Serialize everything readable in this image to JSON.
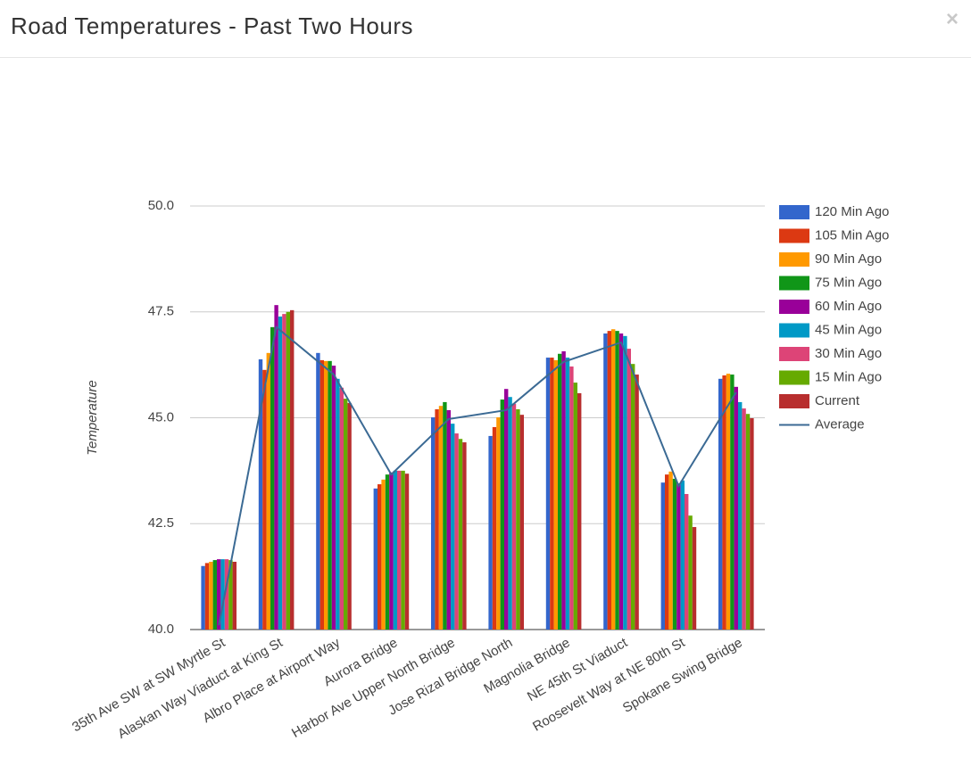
{
  "dialog": {
    "title": "Road Temperatures - Past Two Hours",
    "close": "×"
  },
  "chart_data": {
    "type": "bar",
    "y_label": "Temperature",
    "categories": [
      "35th Ave SW at SW Myrtle St",
      "Alaskan Way Viaduct at King St",
      "Albro Place at Airport Way",
      "Aurora Bridge",
      "Harbor Ave Upper North Bridge",
      "Jose Rizal Bridge North",
      "Magnolia Bridge",
      "NE 45th St Viaduct",
      "Roosevelt Way at NE 80th St",
      "Spokane Swing Bridge"
    ],
    "series": [
      {
        "name": "120 Min Ago",
        "color": "#3366cc",
        "values": [
          41.5,
          46.38,
          46.53,
          43.33,
          45.01,
          44.57,
          46.42,
          46.99,
          43.47,
          45.92
        ]
      },
      {
        "name": "105 Min Ago",
        "color": "#dc3912",
        "values": [
          41.57,
          46.13,
          46.36,
          43.43,
          45.2,
          44.78,
          46.42,
          47.05,
          43.66,
          46.0
        ]
      },
      {
        "name": "90 Min Ago",
        "color": "#ff9900",
        "values": [
          41.6,
          46.53,
          46.34,
          43.54,
          45.28,
          45.01,
          46.36,
          47.09,
          43.73,
          46.04
        ]
      },
      {
        "name": "75 Min Ago",
        "color": "#109618",
        "values": [
          41.64,
          47.14,
          46.34,
          43.66,
          45.37,
          45.43,
          46.51,
          47.05,
          43.56,
          46.02
        ]
      },
      {
        "name": "60 Min Ago",
        "color": "#990099",
        "values": [
          41.66,
          47.66,
          46.23,
          43.71,
          45.18,
          45.68,
          46.57,
          46.99,
          43.45,
          45.73
        ]
      },
      {
        "name": "45 Min Ago",
        "color": "#0099c6",
        "values": [
          41.66,
          47.39,
          45.92,
          43.75,
          44.86,
          45.49,
          46.42,
          46.93,
          43.52,
          45.37
        ]
      },
      {
        "name": "30 Min Ago",
        "color": "#dd4477",
        "values": [
          41.66,
          47.45,
          45.71,
          43.75,
          44.63,
          45.33,
          46.21,
          46.63,
          43.2,
          45.22
        ]
      },
      {
        "name": "15 Min Ago",
        "color": "#66aa00",
        "values": [
          41.64,
          47.5,
          45.45,
          43.75,
          44.5,
          45.2,
          45.83,
          46.27,
          42.69,
          45.09
        ]
      },
      {
        "name": "Current",
        "color": "#b82e2e",
        "values": [
          41.6,
          47.54,
          45.35,
          43.68,
          44.42,
          45.07,
          45.58,
          46.02,
          42.42,
          44.99
        ]
      },
      {
        "name": "Average",
        "type": "line",
        "color": "#3b6a94",
        "values": [
          40.1,
          47.14,
          46.02,
          43.66,
          44.97,
          45.18,
          46.32,
          46.78,
          43.39,
          45.6
        ]
      }
    ],
    "ylim": [
      40,
      50
    ],
    "yticks": [
      {
        "value": 40,
        "label": "40.0"
      },
      42.5,
      {
        "value": 45,
        "label": "45.0"
      },
      47.5,
      {
        "value": 50,
        "label": "50.0"
      }
    ],
    "grid": true,
    "legend": "right"
  }
}
